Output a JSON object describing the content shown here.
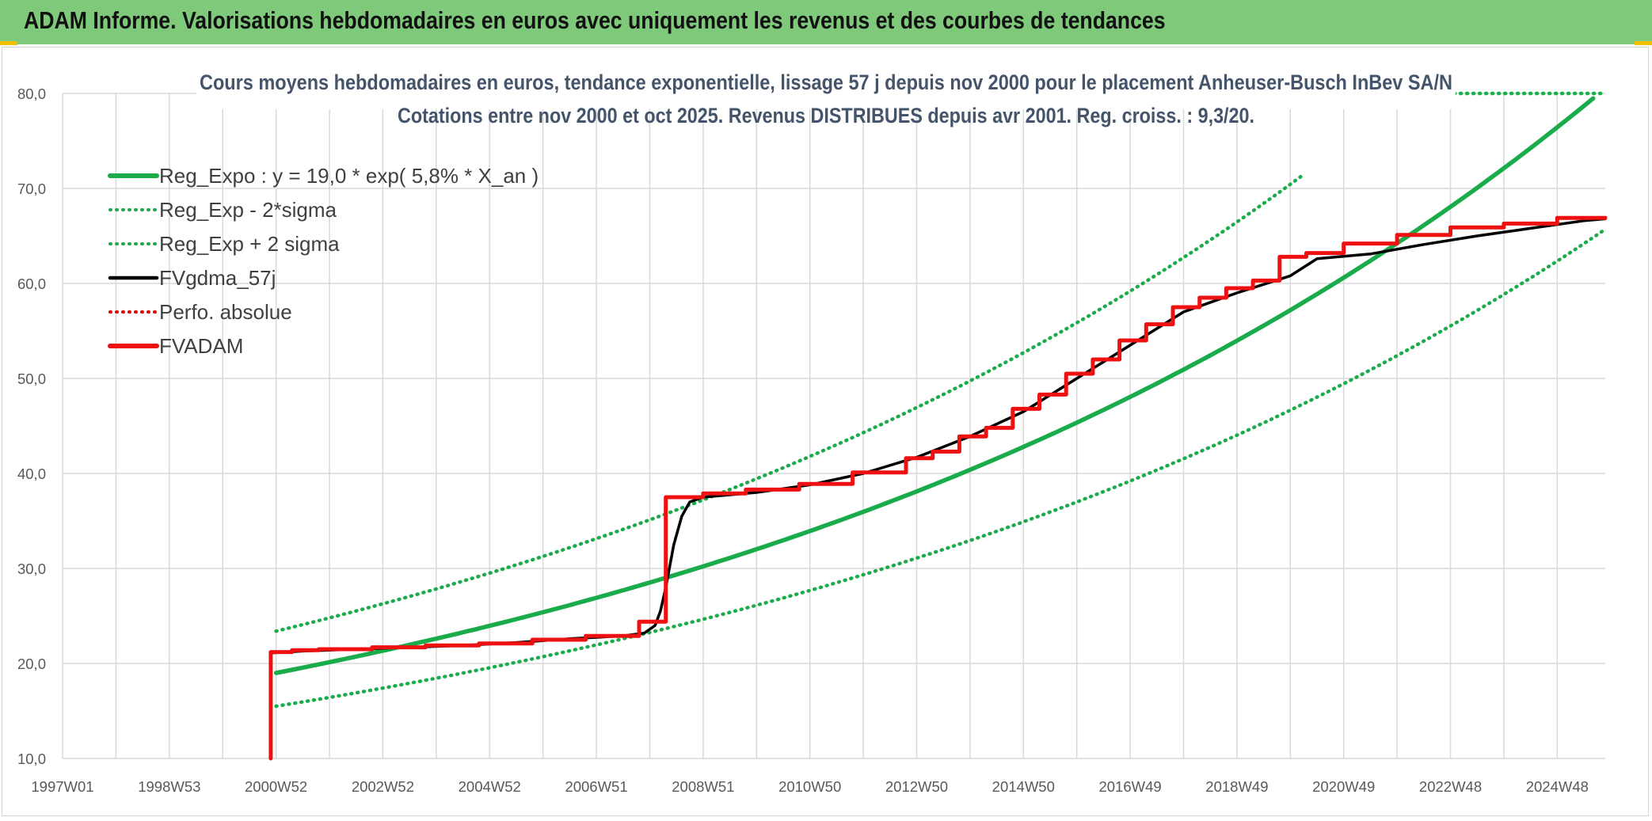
{
  "header": {
    "title": "ADAM Informe. Valorisations hebdomadaires en euros avec uniquement les revenus et des courbes de tendances"
  },
  "colors": {
    "header_bg": "#7fc97a",
    "reg_expo": "#1aab4b",
    "sigma_band": "#1aab4b",
    "fvgdma": "#000000",
    "perfo": "#e00000",
    "fvadam": "#ee1111",
    "grid": "#d9d9d9"
  },
  "chart_data": {
    "type": "line",
    "title_line1": "Cours moyens hebdomadaires en euros, tendance exponentielle, lissage 57 j depuis nov 2000 pour le placement Anheuser-Busch InBev SA/N",
    "title_line2": "Cotations entre nov 2000 et oct 2025. Revenus DISTRIBUES depuis avr 2001. Reg. croiss. : 9,3/20.",
    "xlabel": "",
    "ylabel": "",
    "x_range": [
      1997.0,
      2025.9
    ],
    "ylim": [
      10,
      80
    ],
    "y_ticks": [
      10,
      20,
      30,
      40,
      50,
      60,
      70,
      80
    ],
    "y_tick_labels": [
      "10,0",
      "20,0",
      "30,0",
      "40,0",
      "50,0",
      "60,0",
      "70,0",
      "80,0"
    ],
    "x_tick_positions": [
      1997.0,
      1999.0,
      2001.0,
      2003.0,
      2005.0,
      2007.0,
      2009.0,
      2011.0,
      2013.0,
      2015.0,
      2017.0,
      2019.0,
      2021.0,
      2023.0,
      2025.0
    ],
    "x_tick_labels": [
      "1997W01",
      "1998W53",
      "2000W52",
      "2002W52",
      "2004W52",
      "2006W51",
      "2008W51",
      "2010W50",
      "2012W50",
      "2014W50",
      "2016W49",
      "2018W49",
      "2020W49",
      "2022W48",
      "2024W48"
    ],
    "grid": true,
    "legend_position": "top-left",
    "legend": [
      {
        "label": "Reg_Expo : y = 19,0 * exp( 5,8% *  X_an )",
        "style": "solid-thick",
        "color": "#1aab4b"
      },
      {
        "label": "Reg_Exp - 2*sigma",
        "style": "dotted",
        "color": "#1aab4b"
      },
      {
        "label": "Reg_Exp + 2 sigma",
        "style": "dotted",
        "color": "#1aab4b"
      },
      {
        "label": "FVgdma_57j",
        "style": "solid",
        "color": "#000000"
      },
      {
        "label": "Perfo. absolue",
        "style": "dotted",
        "color": "#e00000"
      },
      {
        "label": "FVADAM",
        "style": "solid-thick",
        "color": "#ee1111"
      }
    ],
    "series": [
      {
        "name": "Reg_Expo",
        "kind": "exponential",
        "a": 19.0,
        "rate": 0.058,
        "x0": 2001.0,
        "x_start": 2001.0,
        "x_end": 2025.9
      },
      {
        "name": "Reg_Exp - 2*sigma",
        "kind": "exponential",
        "a": 15.5,
        "rate": 0.058,
        "x0": 2001.0,
        "x_start": 2001.0,
        "x_end": 2025.9
      },
      {
        "name": "Reg_Exp + 2 sigma",
        "kind": "exponential",
        "a": 23.4,
        "rate": 0.058,
        "x0": 2001.0,
        "x_start": 2001.0,
        "x_end": 2020.2,
        "ceiling_from": 2022.0,
        "ceiling_value": 80.0
      },
      {
        "name": "FVADAM",
        "kind": "points",
        "x": [
          2000.9,
          2000.9,
          2001.3,
          2001.3,
          2001.8,
          2001.8,
          2002.8,
          2002.8,
          2003.8,
          2003.8,
          2004.8,
          2004.8,
          2005.8,
          2005.8,
          2006.8,
          2006.8,
          2007.8,
          2007.8,
          2008.3,
          2008.3,
          2009.0,
          2009.0,
          2009.8,
          2009.8,
          2010.8,
          2010.8,
          2011.8,
          2011.8,
          2012.8,
          2012.8,
          2013.3,
          2013.3,
          2013.8,
          2013.8,
          2014.3,
          2014.3,
          2014.8,
          2014.8,
          2015.3,
          2015.3,
          2015.8,
          2015.8,
          2016.3,
          2016.3,
          2016.8,
          2016.8,
          2017.3,
          2017.3,
          2017.8,
          2017.8,
          2018.3,
          2018.3,
          2018.8,
          2018.8,
          2019.3,
          2019.3,
          2019.8,
          2019.8,
          2020.3,
          2020.3,
          2021.0,
          2021.0,
          2022.0,
          2022.0,
          2023.0,
          2023.0,
          2024.0,
          2024.0,
          2025.0,
          2025.0,
          2025.9
        ],
        "y": [
          10.0,
          21.2,
          21.2,
          21.4,
          21.4,
          21.5,
          21.5,
          21.7,
          21.7,
          21.9,
          21.9,
          22.1,
          22.1,
          22.5,
          22.5,
          22.9,
          22.9,
          24.4,
          24.4,
          37.5,
          37.5,
          37.9,
          37.9,
          38.3,
          38.3,
          38.9,
          38.9,
          40.1,
          40.1,
          41.6,
          41.6,
          42.3,
          42.3,
          43.9,
          43.9,
          44.8,
          44.8,
          46.8,
          46.8,
          48.3,
          48.3,
          50.5,
          50.5,
          52.0,
          52.0,
          54.0,
          54.0,
          55.7,
          55.7,
          57.5,
          57.5,
          58.5,
          58.5,
          59.5,
          59.5,
          60.3,
          60.3,
          62.8,
          62.8,
          63.2,
          63.2,
          64.2,
          64.2,
          65.1,
          65.1,
          65.9,
          65.9,
          66.3,
          66.3,
          66.9,
          66.9
        ]
      },
      {
        "name": "FVgdma_57j",
        "kind": "points",
        "x": [
          2000.9,
          2001.5,
          2002.5,
          2003.5,
          2004.5,
          2005.5,
          2006.5,
          2007.5,
          2007.9,
          2008.1,
          2008.2,
          2008.3,
          2008.45,
          2008.6,
          2008.75,
          2009.0,
          2010.0,
          2011.0,
          2012.0,
          2013.0,
          2014.0,
          2015.0,
          2016.0,
          2017.0,
          2018.0,
          2019.0,
          2020.0,
          2020.5,
          2021.5,
          2022.5,
          2023.5,
          2024.5,
          2025.5,
          2025.9
        ],
        "y": [
          21.1,
          21.3,
          21.5,
          21.7,
          21.9,
          22.2,
          22.6,
          22.9,
          23.2,
          24.0,
          25.5,
          28.0,
          32.5,
          35.5,
          37.0,
          37.5,
          38.0,
          38.8,
          40.0,
          41.7,
          43.9,
          46.5,
          50.0,
          53.5,
          57.0,
          59.0,
          60.8,
          62.6,
          63.1,
          64.1,
          65.0,
          65.8,
          66.6,
          66.8
        ]
      }
    ]
  }
}
